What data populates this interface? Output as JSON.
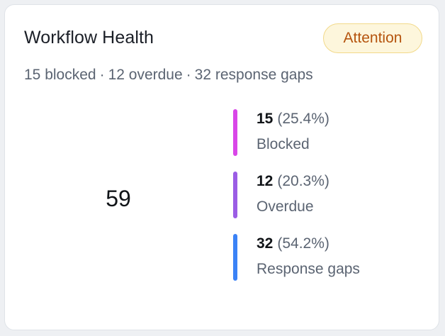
{
  "card": {
    "title": "Workflow Health",
    "badge": "Attention",
    "summary": {
      "blocked": "15 blocked",
      "overdue": "12 overdue",
      "gaps": "32 response gaps",
      "separator": "·"
    },
    "total": "59"
  },
  "colors": {
    "blocked": "#d946e8",
    "overdue": "#9b5de5",
    "gaps": "#3b82f6",
    "badge_text": "#b5540e",
    "badge_bg": "#fdf6dc"
  },
  "chart_data": {
    "type": "pie",
    "categories": [
      "Blocked",
      "Overdue",
      "Response gaps"
    ],
    "values": [
      15,
      12,
      32
    ],
    "percents": [
      "(25.4%)",
      "(20.3%)",
      "(54.2%)"
    ],
    "total": 59
  },
  "legend": [
    {
      "value": "15",
      "percent": "(25.4%)",
      "label": "Blocked",
      "color": "#d946e8"
    },
    {
      "value": "12",
      "percent": "(20.3%)",
      "label": "Overdue",
      "color": "#9b5de5"
    },
    {
      "value": "32",
      "percent": "(54.2%)",
      "label": "Response gaps",
      "color": "#3b82f6"
    }
  ]
}
